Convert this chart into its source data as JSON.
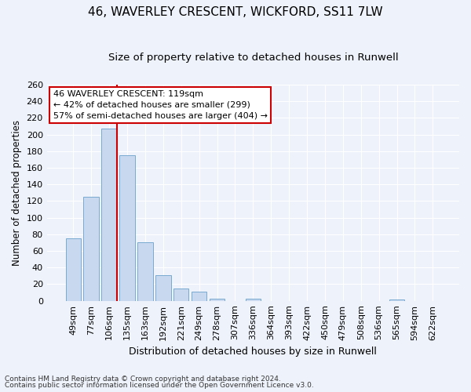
{
  "title": "46, WAVERLEY CRESCENT, WICKFORD, SS11 7LW",
  "subtitle": "Size of property relative to detached houses in Runwell",
  "xlabel": "Distribution of detached houses by size in Runwell",
  "ylabel": "Number of detached properties",
  "categories": [
    "49sqm",
    "77sqm",
    "106sqm",
    "135sqm",
    "163sqm",
    "192sqm",
    "221sqm",
    "249sqm",
    "278sqm",
    "307sqm",
    "336sqm",
    "364sqm",
    "393sqm",
    "422sqm",
    "450sqm",
    "479sqm",
    "508sqm",
    "536sqm",
    "565sqm",
    "594sqm",
    "622sqm"
  ],
  "values": [
    75,
    125,
    207,
    175,
    70,
    31,
    15,
    11,
    3,
    0,
    3,
    0,
    0,
    0,
    0,
    0,
    0,
    0,
    2,
    0,
    0
  ],
  "bar_color": "#c8d8ee",
  "bar_edgecolor": "#7aaad0",
  "annotation_line1": "46 WAVERLEY CRESCENT: 119sqm",
  "annotation_line2": "← 42% of detached houses are smaller (299)",
  "annotation_line3": "57% of semi-detached houses are larger (404) →",
  "annotation_box_color": "#ffffff",
  "annotation_box_edgecolor": "#cc0000",
  "vline_color": "#cc0000",
  "ylim": [
    0,
    260
  ],
  "yticks": [
    0,
    20,
    40,
    60,
    80,
    100,
    120,
    140,
    160,
    180,
    200,
    220,
    240,
    260
  ],
  "footer_line1": "Contains HM Land Registry data © Crown copyright and database right 2024.",
  "footer_line2": "Contains public sector information licensed under the Open Government Licence v3.0.",
  "background_color": "#eef2fa",
  "title_fontsize": 11,
  "subtitle_fontsize": 9.5,
  "xlabel_fontsize": 9,
  "ylabel_fontsize": 8.5,
  "tick_fontsize": 8,
  "footer_fontsize": 6.5
}
